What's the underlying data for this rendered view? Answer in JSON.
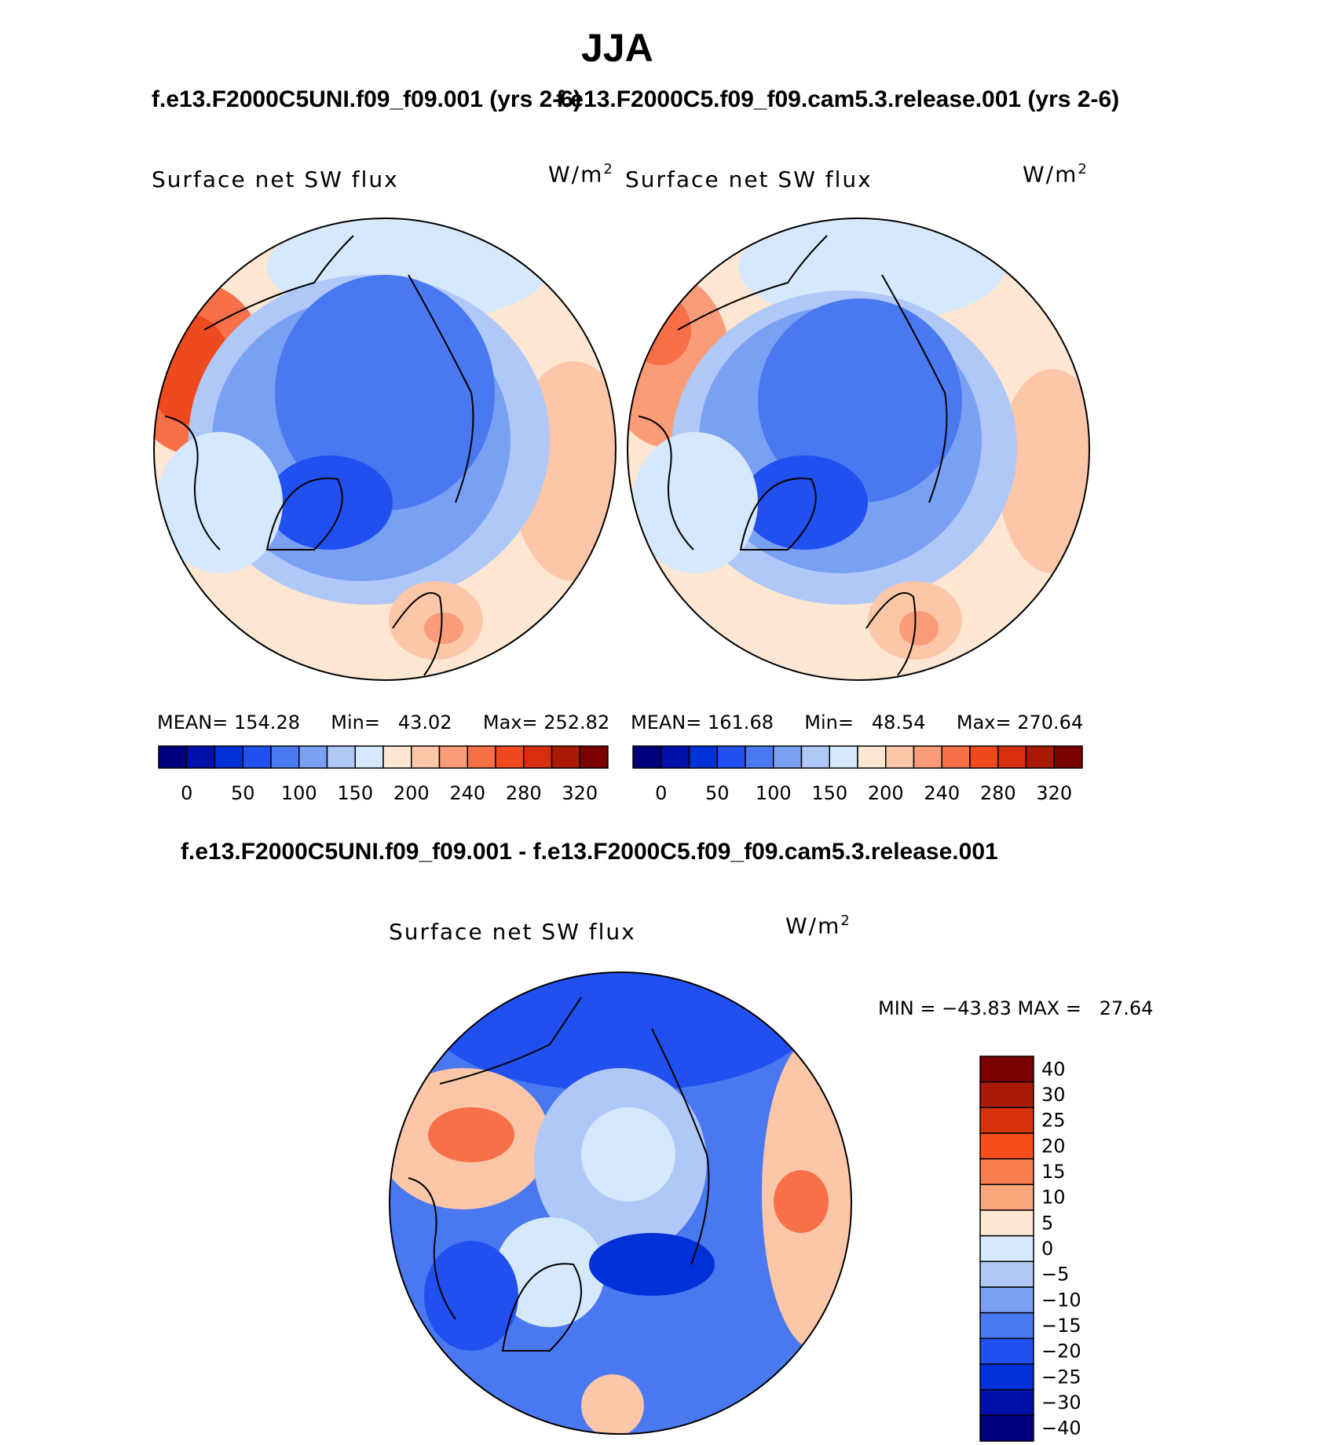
{
  "season": "JJA",
  "case1_title": "f.e13.F2000C5UNI.f09_f09.001 (yrs 2-6)",
  "case2_title": "f.e13.F2000C5.f09_f09.cam5.3.release.001 (yrs 2-6)",
  "diff_title": "f.e13.F2000C5UNI.f09_f09.001 - f.e13.F2000C5.f09_f09.cam5.3.release.001",
  "panels": [
    {
      "variable": "Surface net SW flux",
      "units": "W/m",
      "units_exp": "2",
      "mean_label": "MEAN=",
      "mean": "154.28",
      "min_label": "Min=",
      "min": "43.02",
      "max_label": "Max=",
      "max": "252.82"
    },
    {
      "variable": "Surface net SW flux",
      "units": "W/m",
      "units_exp": "2",
      "mean_label": "MEAN=",
      "mean": "161.68",
      "min_label": "Min=",
      "min": "48.54",
      "max_label": "Max=",
      "max": "270.64"
    }
  ],
  "diff_panel": {
    "variable": "Surface net SW flux",
    "units": "W/m",
    "units_exp": "2",
    "minmax_text": "MIN = −43.83 MAX =   27.64"
  },
  "colorbar_abs": {
    "colors": [
      "#00007f",
      "#0010a8",
      "#0030d8",
      "#2050f0",
      "#4a78f0",
      "#7aa0f4",
      "#b0c8f8",
      "#d6e8fc",
      "#fde6d2",
      "#fcc6a8",
      "#fa9c78",
      "#f77048",
      "#ee4a1e",
      "#d62e0e",
      "#aa1a06",
      "#7a0000"
    ],
    "ticks": [
      "0",
      "50",
      "100",
      "150",
      "200",
      "240",
      "280",
      "320"
    ]
  },
  "colorbar_diff": {
    "colors": [
      "#7a0000",
      "#aa1a06",
      "#d8320a",
      "#f54e1c",
      "#f87c4c",
      "#fba67c",
      "#fde6d2",
      "#d6e8fc",
      "#b0c8f8",
      "#7aa0f4",
      "#4a78f0",
      "#2050f0",
      "#0030d8",
      "#0010a8",
      "#00007f"
    ],
    "labels": [
      "40",
      "30",
      "25",
      "20",
      "15",
      "10",
      "5",
      "0",
      "−5",
      "−10",
      "−15",
      "−20",
      "−25",
      "−30",
      "−40"
    ]
  },
  "chart_data": {
    "type": "heatmap",
    "title": "JJA Surface net SW flux",
    "projection": "north polar stereographic",
    "units": "W/m2",
    "maps": [
      {
        "name": "f.e13.F2000C5UNI.f09_f09.001 (yrs 2-6)",
        "mean": 154.28,
        "min": 43.02,
        "max": 252.82
      },
      {
        "name": "f.e13.F2000C5.f09_f09.cam5.3.release.001 (yrs 2-6)",
        "mean": 161.68,
        "min": 48.54,
        "max": 270.64
      },
      {
        "name": "difference",
        "min": -43.83,
        "max": 27.64
      }
    ],
    "contour_levels_abs": [
      0,
      50,
      100,
      150,
      200,
      240,
      280,
      320
    ],
    "contour_levels_diff": [
      -40,
      -30,
      -25,
      -20,
      -15,
      -10,
      -5,
      0,
      5,
      10,
      15,
      20,
      25,
      30,
      40
    ]
  }
}
